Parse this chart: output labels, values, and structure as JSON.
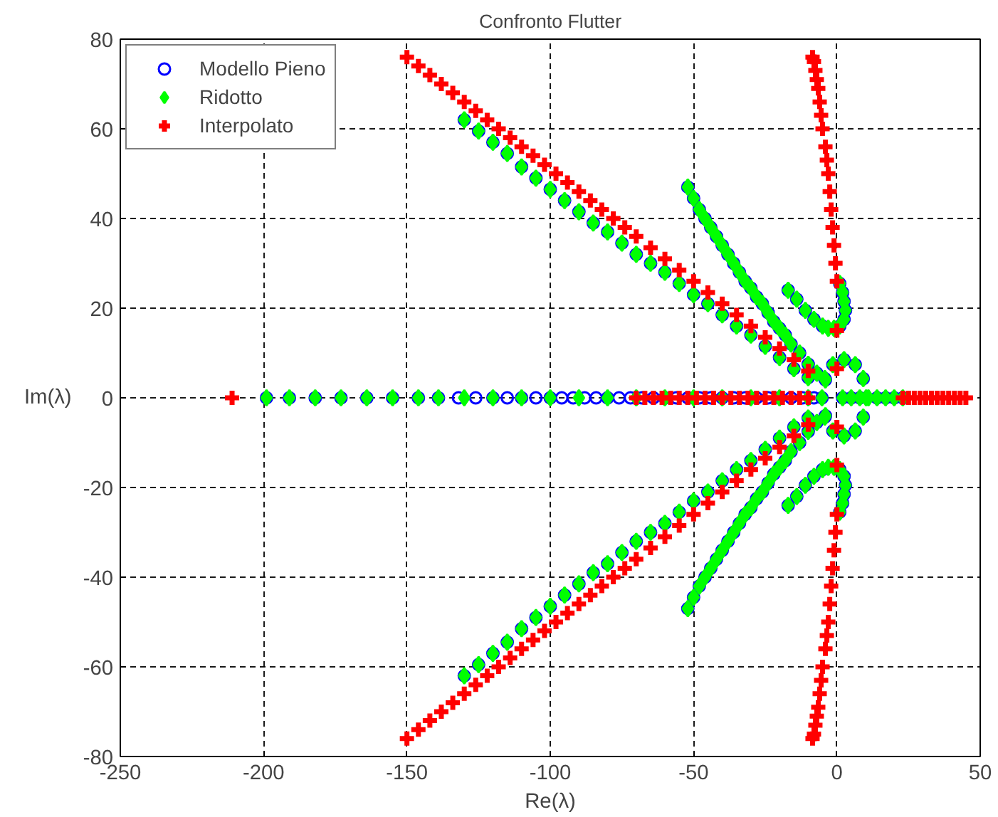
{
  "chart_data": {
    "type": "scatter",
    "title": "Confronto Flutter",
    "xlabel": "Re(λ)",
    "ylabel": "Im(λ)",
    "xlim": [
      -250,
      50
    ],
    "xticks": [
      -250,
      -200,
      -150,
      -100,
      -50,
      0,
      50
    ],
    "ylim": [
      -80,
      80
    ],
    "yticks": [
      -80,
      -60,
      -40,
      -20,
      0,
      20,
      40,
      60,
      80
    ],
    "grid": true,
    "legend": "top left",
    "series": [
      {
        "name": "Modello Pieno",
        "color": "#0000ff",
        "marker": "circle",
        "x": [
          -130,
          -125,
          -120,
          -115,
          -110,
          -105,
          -100,
          -95,
          -90,
          -85,
          -80,
          -75,
          -70,
          -65,
          -60,
          -55,
          -50,
          -45,
          -40,
          -35,
          -30,
          -25,
          -20,
          -15,
          -10,
          -130,
          -125,
          -120,
          -115,
          -110,
          -105,
          -100,
          -95,
          -90,
          -85,
          -80,
          -75,
          -70,
          -65,
          -60,
          -55,
          -50,
          -45,
          -40,
          -35,
          -30,
          -25,
          -20,
          -15,
          -10,
          -52,
          -50,
          -48,
          -46,
          -44,
          -42,
          -40,
          -38,
          -36,
          -34,
          -32,
          -30,
          -28,
          -26,
          -24,
          -22,
          -20,
          -18,
          -16,
          -13,
          -10,
          -7,
          -4,
          -52,
          -50,
          -48,
          -46,
          -44,
          -42,
          -40,
          -38,
          -36,
          -34,
          -32,
          -30,
          -28,
          -26,
          -24,
          -22,
          -20,
          -18,
          -16,
          -13,
          -10,
          -7,
          -4,
          -17,
          -14,
          -11,
          -8,
          -5,
          1,
          2.5,
          3,
          2.5,
          2,
          1,
          -17,
          -14,
          -11,
          -8,
          -5,
          1,
          2.5,
          3,
          2.5,
          2,
          1,
          9.2,
          6.4,
          2.5,
          -1.4,
          -4.2,
          -5.2,
          -4.2,
          -1.4,
          2.5,
          6.4,
          9.2,
          -199,
          -191,
          -182,
          -173,
          -164,
          -155,
          -146,
          -139,
          -132,
          -126,
          -120,
          -115,
          -110,
          -105,
          -100,
          -96,
          -92,
          -88,
          -84,
          -80,
          -76,
          -72,
          -68,
          -64,
          -60,
          -56,
          -52,
          -48,
          -44,
          -40,
          -36,
          -32,
          -28,
          -24,
          -20,
          -16,
          -12,
          -8,
          2,
          5,
          8,
          14,
          17,
          20,
          23
        ],
        "values": [
          62,
          59.5,
          57,
          54.5,
          51.5,
          49,
          46.5,
          44,
          41.5,
          39,
          37,
          34.5,
          32,
          30,
          28,
          25.5,
          23,
          21,
          18.5,
          16,
          14,
          11.5,
          9,
          6.5,
          4.5,
          -62,
          -59.5,
          -57,
          -54.5,
          -51.5,
          -49,
          -46.5,
          -44,
          -41.5,
          -39,
          -37,
          -34.5,
          -32,
          -30,
          -28,
          -25.5,
          -23,
          -21,
          -18.5,
          -16,
          -14,
          -11.5,
          -9,
          -6.5,
          -4.5,
          47,
          44.5,
          42,
          40,
          38,
          36,
          34,
          32,
          30,
          28,
          26,
          24.5,
          22.5,
          21,
          19,
          17,
          15.5,
          14,
          12,
          10,
          7.5,
          5.5,
          4,
          -47,
          -44.5,
          -42,
          -40,
          -38,
          -36,
          -34,
          -32,
          -30,
          -28,
          -26,
          -24.5,
          -22.5,
          -21,
          -19,
          -17,
          -15.5,
          -14,
          -12,
          -10,
          -7.5,
          -5.5,
          -4,
          24,
          22,
          19.5,
          17.5,
          16,
          16,
          17.5,
          19.5,
          21.5,
          23.5,
          25.5,
          -24,
          -22,
          -19.5,
          -17.5,
          -16,
          -16,
          -17.5,
          -19.5,
          -21.5,
          -23.5,
          -25.5,
          4.3,
          7.4,
          8.5,
          7.4,
          4.3,
          0,
          -4.3,
          -7.4,
          -8.5,
          -7.4,
          -4.3,
          0,
          0,
          0,
          0,
          0,
          0,
          0,
          0,
          0,
          0,
          0,
          0,
          0,
          0,
          0,
          0,
          0,
          0,
          0,
          0,
          0,
          0,
          0,
          0,
          0,
          0,
          0,
          0,
          0,
          0,
          0,
          0,
          0,
          0,
          0,
          0,
          0,
          0,
          0,
          0,
          0,
          0,
          0,
          0,
          0
        ]
      },
      {
        "name": "Ridotto",
        "color": "#00ff00",
        "marker": "diamond",
        "x": [
          -130,
          -125,
          -120,
          -115,
          -110,
          -105,
          -100,
          -95,
          -90,
          -85,
          -80,
          -75,
          -70,
          -65,
          -60,
          -55,
          -50,
          -45,
          -40,
          -35,
          -30,
          -25,
          -20,
          -15,
          -10,
          -130,
          -125,
          -120,
          -115,
          -110,
          -105,
          -100,
          -95,
          -90,
          -85,
          -80,
          -75,
          -70,
          -65,
          -60,
          -55,
          -50,
          -45,
          -40,
          -35,
          -30,
          -25,
          -20,
          -15,
          -10,
          -52,
          -50,
          -48,
          -46,
          -44,
          -42,
          -40,
          -38,
          -36,
          -34,
          -32,
          -30,
          -28,
          -26,
          -24,
          -22,
          -20,
          -18,
          -16,
          -13,
          -10,
          -7,
          -4,
          -52,
          -50,
          -48,
          -46,
          -44,
          -42,
          -40,
          -38,
          -36,
          -34,
          -32,
          -30,
          -28,
          -26,
          -24,
          -22,
          -20,
          -18,
          -16,
          -13,
          -10,
          -7,
          -4,
          -17,
          -14,
          -11,
          -8,
          -5,
          -3,
          -1,
          1,
          2.5,
          3,
          2.5,
          2,
          1,
          -17,
          -14,
          -11,
          -8,
          -5,
          -3,
          -1,
          1,
          2.5,
          3,
          2.5,
          2,
          1,
          10.2,
          9.2,
          6.4,
          2.5,
          -1.4,
          -4.2,
          -5.2,
          -4.2,
          -1.4,
          2.5,
          6.4,
          9.2,
          -199,
          -191,
          -182,
          -173,
          -164,
          -155,
          -146,
          -139,
          -130,
          -120,
          -110,
          -100,
          -90,
          -80,
          -70,
          -60,
          -50,
          -40,
          -30,
          -20,
          -10,
          2,
          5,
          8,
          11,
          14,
          17,
          20,
          23
        ],
        "values": [
          62,
          59.5,
          57,
          54.5,
          51.5,
          49,
          46.5,
          44,
          41.5,
          39,
          37,
          34.5,
          32,
          30,
          28,
          25.5,
          23,
          21,
          18.5,
          16,
          14,
          11.5,
          9,
          6.5,
          4.5,
          -62,
          -59.5,
          -57,
          -54.5,
          -51.5,
          -49,
          -46.5,
          -44,
          -41.5,
          -39,
          -37,
          -34.5,
          -32,
          -30,
          -28,
          -25.5,
          -23,
          -21,
          -18.5,
          -16,
          -14,
          -11.5,
          -9,
          -6.5,
          -4.5,
          47,
          44.5,
          42,
          40,
          38,
          36,
          34,
          32,
          30,
          28,
          26,
          24.5,
          22.5,
          21,
          19,
          17,
          15.5,
          14,
          12,
          10,
          7.5,
          5.5,
          4,
          -47,
          -44.5,
          -42,
          -40,
          -38,
          -36,
          -34,
          -32,
          -30,
          -28,
          -26,
          -24.5,
          -22.5,
          -21,
          -19,
          -17,
          -15.5,
          -14,
          -12,
          -10,
          -7.5,
          -5.5,
          -4,
          24,
          22,
          19.5,
          17.5,
          16,
          15.5,
          15.5,
          16,
          17.5,
          19.5,
          21.5,
          23.5,
          25.5,
          -24,
          -22,
          -19.5,
          -17.5,
          -16,
          -15.5,
          -15.5,
          -16,
          -17.5,
          -19.5,
          -21.5,
          -23.5,
          -25.5,
          0,
          4.3,
          7.4,
          8.5,
          7.4,
          4.3,
          0,
          -4.3,
          -7.4,
          -8.5,
          -7.4,
          -4.3,
          0,
          0,
          0,
          0,
          0,
          0,
          0,
          0,
          0,
          0,
          0,
          0,
          0,
          0,
          0,
          0,
          0,
          0,
          0,
          0,
          0,
          0,
          0,
          0,
          0,
          0,
          0,
          0,
          0
        ]
      },
      {
        "name": "Interpolato",
        "color": "#ff0000",
        "marker": "cross",
        "x": [
          -150,
          -146,
          -142,
          -138,
          -134,
          -130,
          -126,
          -122,
          -118,
          -114,
          -110,
          -106,
          -102,
          -98,
          -94,
          -90,
          -86,
          -82,
          -78,
          -74,
          -70,
          -65,
          -60,
          -55,
          -50,
          -45,
          -40,
          -35,
          -30,
          -25,
          -20,
          -15,
          -10,
          -150,
          -146,
          -142,
          -138,
          -134,
          -130,
          -126,
          -122,
          -118,
          -114,
          -110,
          -106,
          -102,
          -98,
          -94,
          -90,
          -86,
          -82,
          -78,
          -74,
          -70,
          -65,
          -60,
          -55,
          -50,
          -45,
          -40,
          -35,
          -30,
          -25,
          -20,
          -15,
          -10,
          0,
          -0.5,
          -1,
          -1.5,
          -2,
          -2.5,
          -3,
          -3.5,
          -4,
          -5,
          -5.5,
          -6,
          -6.5,
          -7,
          -7.5,
          -8,
          -8.5,
          0,
          -0.5,
          -1,
          -1.5,
          -2,
          -2.5,
          -3,
          -3.5,
          -4,
          -5,
          -5.5,
          -6,
          -6.5,
          -7,
          -7.5,
          -8,
          -8.5,
          0,
          0,
          0,
          0,
          -211,
          -70,
          -67,
          -64,
          -61,
          -58,
          -55,
          -52,
          -49,
          -46,
          -43,
          -40,
          -37,
          -34,
          -31,
          -28,
          -25,
          -22,
          -19,
          -16,
          -13,
          -10,
          23,
          25,
          27,
          29,
          31,
          33,
          35,
          37,
          39,
          41,
          43,
          45
        ],
        "values": [
          76,
          74,
          72,
          70,
          68,
          66,
          64,
          62,
          60,
          58,
          56,
          54,
          52,
          50,
          48,
          46,
          44,
          42,
          40,
          38,
          36,
          33.5,
          31,
          28.5,
          26,
          23.5,
          21,
          18.5,
          16,
          13.5,
          11,
          8.5,
          6,
          -76,
          -74,
          -72,
          -70,
          -68,
          -66,
          -64,
          -62,
          -60,
          -58,
          -56,
          -54,
          -52,
          -50,
          -48,
          -46,
          -44,
          -42,
          -40,
          -38,
          -36,
          -33.5,
          -31,
          -28.5,
          -26,
          -23.5,
          -21,
          -18.5,
          -16,
          -13.5,
          -11,
          -8.5,
          -6,
          26,
          30,
          34,
          38,
          42,
          46,
          50,
          53,
          56,
          60,
          63,
          66,
          69,
          71,
          73,
          75,
          76,
          -26,
          -30,
          -34,
          -38,
          -42,
          -46,
          -50,
          -53,
          -56,
          -60,
          -63,
          -66,
          -69,
          -71,
          -73,
          -75,
          -76,
          15,
          6.5,
          -15,
          -6.5,
          0,
          0,
          0,
          0,
          0,
          0,
          0,
          0,
          0,
          0,
          0,
          0,
          0,
          0,
          0,
          0,
          0,
          0,
          0,
          0,
          0,
          0,
          0,
          0,
          0,
          0,
          0,
          0,
          0,
          0,
          0,
          0,
          0,
          0
        ]
      }
    ]
  }
}
